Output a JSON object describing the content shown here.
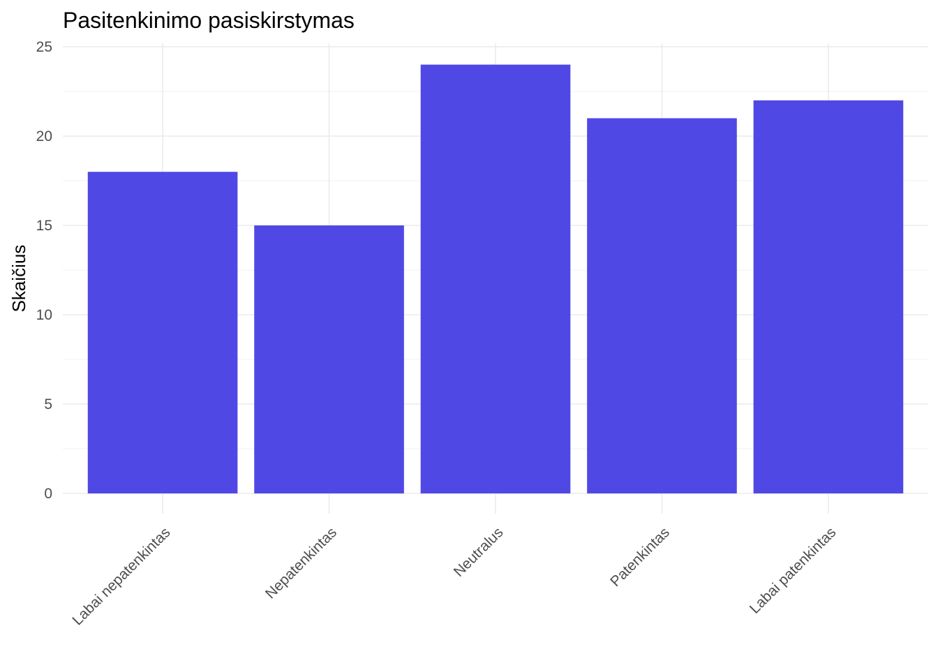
{
  "chart_data": {
    "type": "bar",
    "title": "Pasitenkinimo pasiskirstymas",
    "xlabel": "",
    "ylabel": "Skaičius",
    "categories": [
      "Labai nepatenkintas",
      "Nepatenkintas",
      "Neutralus",
      "Patenkintas",
      "Labai patenkintas"
    ],
    "values": [
      18,
      15,
      24,
      21,
      22
    ],
    "ylim": [
      0,
      25
    ],
    "yticks": [
      0,
      5,
      10,
      15,
      20,
      25
    ],
    "grid": true,
    "legend": "none",
    "bar_color": "#5048E5"
  }
}
